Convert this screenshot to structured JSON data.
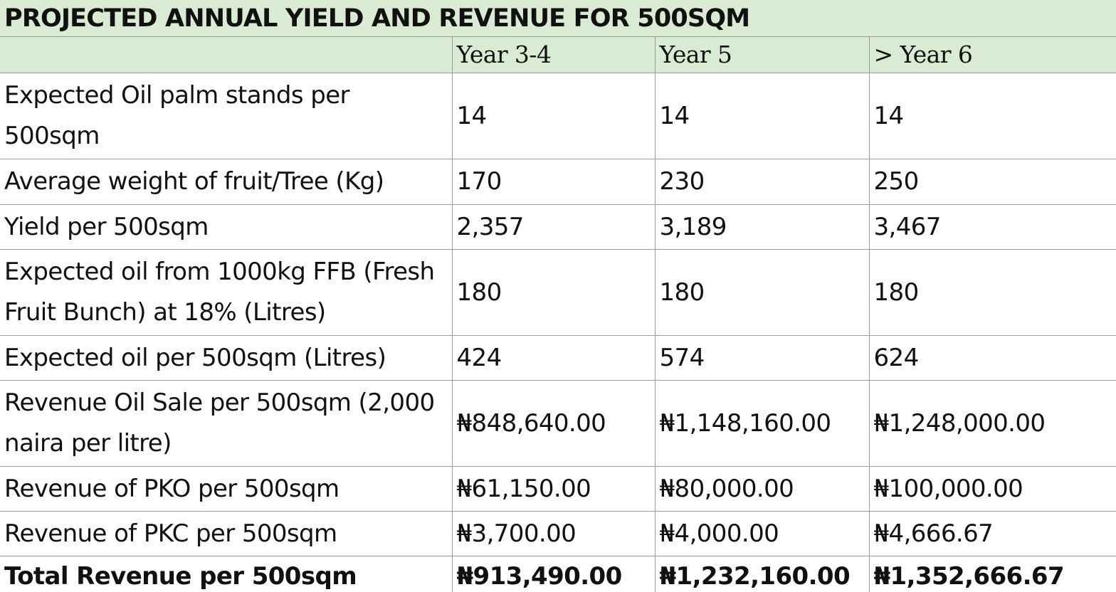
{
  "title": "PROJECTED ANNUAL YIELD AND REVENUE FOR 500SQM",
  "columns": [
    "",
    "Year 3-4",
    "Year 5",
    "> Year 6"
  ],
  "rows": [
    {
      "label": "Expected Oil palm stands per 500sqm",
      "values": [
        "14",
        "14",
        "14"
      ]
    },
    {
      "label": "Average weight of fruit/Tree (Kg)",
      "values": [
        "170",
        "230",
        "250"
      ]
    },
    {
      "label": "Yield per 500sqm",
      "values": [
        "2,357",
        "3,189",
        "3,467"
      ]
    },
    {
      "label": "Expected oil from 1000kg FFB (Fresh Fruit Bunch) at 18% (Litres)",
      "values": [
        "180",
        "180",
        "180"
      ]
    },
    {
      "label": "Expected oil per 500sqm (Litres)",
      "values": [
        "424",
        "574",
        "624"
      ]
    },
    {
      "label": "Revenue Oil Sale per 500sqm (2,000 naira per litre)",
      "values": [
        "₦848,640.00",
        "₦1,148,160.00",
        "₦1,248,000.00"
      ]
    },
    {
      "label": "Revenue of PKO per 500sqm",
      "values": [
        "₦61,150.00",
        "₦80,000.00",
        "₦100,000.00"
      ]
    },
    {
      "label": "Revenue of PKC per 500sqm",
      "values": [
        "₦3,700.00",
        "₦4,000.00",
        "₦4,666.67"
      ]
    },
    {
      "label": "Total Revenue per 500sqm",
      "values": [
        "₦913,490.00",
        "₦1,232,160.00",
        "₦1,352,666.67"
      ]
    }
  ],
  "colors": {
    "header_fill": "#d9ecd3",
    "grid_line": "#9a9a9a",
    "text": "#111111"
  }
}
